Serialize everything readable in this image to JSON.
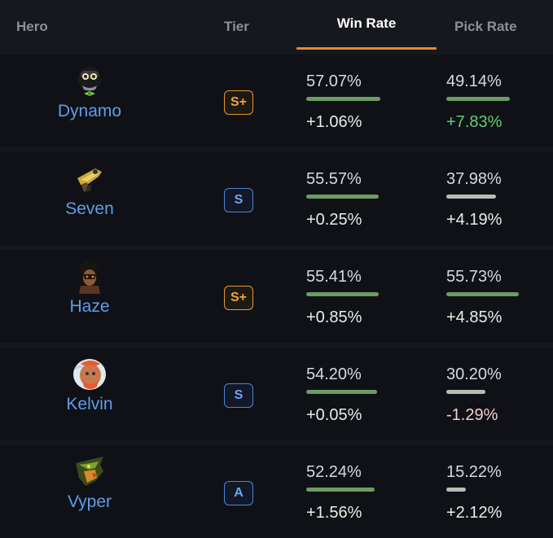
{
  "header": {
    "hero": "Hero",
    "tier": "Tier",
    "win_rate": "Win Rate",
    "pick_rate": "Pick Rate"
  },
  "colors": {
    "accent_underline": "#e38a2f",
    "hero_name": "#5d9ee8",
    "bar_green": "#6b9c63",
    "bar_gray": "#b9bcb4",
    "delta_white": "#e6eee6",
    "delta_green": "#5fcf72",
    "delta_negative": "#f0d0d0"
  },
  "rows": [
    {
      "name": "Dynamo",
      "icon": "dynamo-portrait-icon",
      "tier": "S+",
      "tier_style": "gold",
      "win_rate": "57.07%",
      "win_fill": 0.57,
      "win_delta": "+1.06%",
      "win_delta_tone": "white",
      "pick_rate": "49.14%",
      "pick_fill": 0.49,
      "pick_bar_tone": "green",
      "pick_delta": "+7.83%",
      "pick_delta_tone": "green"
    },
    {
      "name": "Seven",
      "icon": "seven-portrait-icon",
      "tier": "S",
      "tier_style": "blue",
      "win_rate": "55.57%",
      "win_fill": 0.5557,
      "win_delta": "+0.25%",
      "win_delta_tone": "white",
      "pick_rate": "37.98%",
      "pick_fill": 0.3798,
      "pick_bar_tone": "gray",
      "pick_delta": "+4.19%",
      "pick_delta_tone": "white"
    },
    {
      "name": "Haze",
      "icon": "haze-portrait-icon",
      "tier": "S+",
      "tier_style": "gold",
      "win_rate": "55.41%",
      "win_fill": 0.5541,
      "win_delta": "+0.85%",
      "win_delta_tone": "white",
      "pick_rate": "55.73%",
      "pick_fill": 0.5573,
      "pick_bar_tone": "green",
      "pick_delta": "+4.85%",
      "pick_delta_tone": "white"
    },
    {
      "name": "Kelvin",
      "icon": "kelvin-portrait-icon",
      "tier": "S",
      "tier_style": "blue",
      "win_rate": "54.20%",
      "win_fill": 0.542,
      "win_delta": "+0.05%",
      "win_delta_tone": "white",
      "pick_rate": "30.20%",
      "pick_fill": 0.302,
      "pick_bar_tone": "gray",
      "pick_delta": "-1.29%",
      "pick_delta_tone": "negative"
    },
    {
      "name": "Vyper",
      "icon": "vyper-portrait-icon",
      "tier": "A",
      "tier_style": "blue",
      "win_rate": "52.24%",
      "win_fill": 0.5224,
      "win_delta": "+1.56%",
      "win_delta_tone": "white",
      "pick_rate": "15.22%",
      "pick_fill": 0.1522,
      "pick_bar_tone": "gray",
      "pick_delta": "+2.12%",
      "pick_delta_tone": "white"
    }
  ]
}
